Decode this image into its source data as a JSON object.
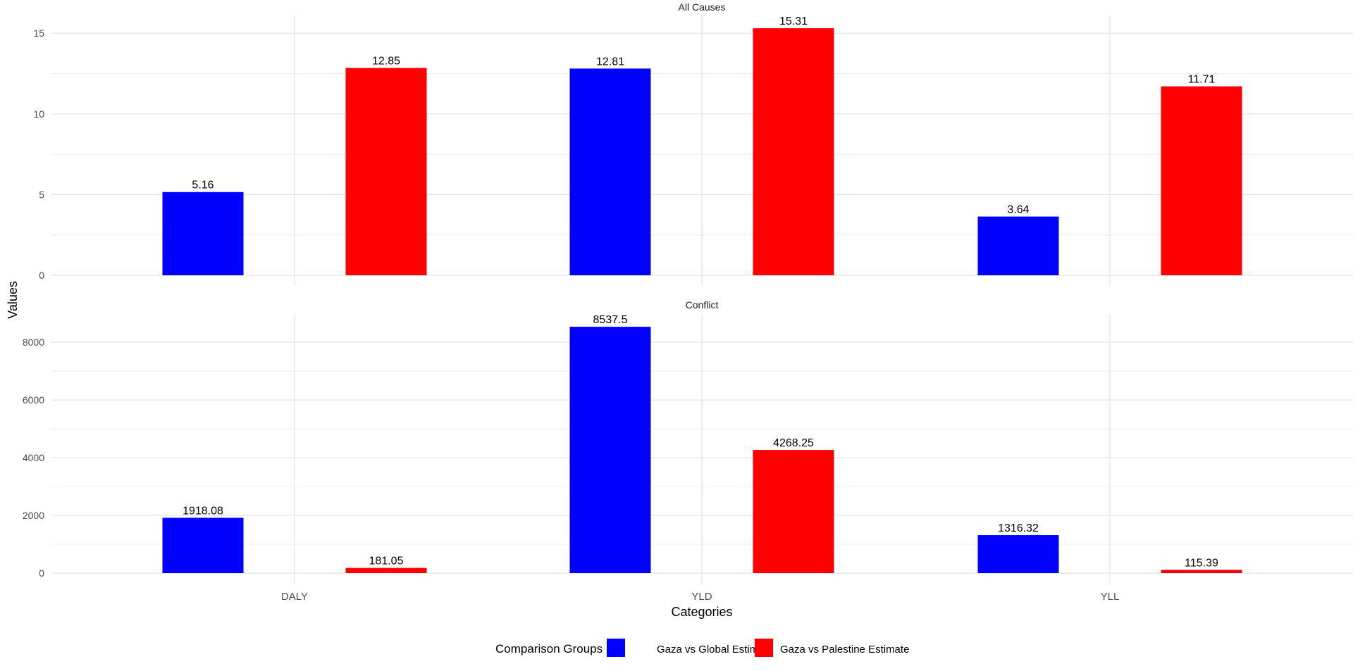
{
  "chart_data": {
    "type": "bar",
    "facets": [
      {
        "title": "All Causes",
        "categories": [
          "DALY",
          "YLD",
          "YLL"
        ],
        "ylim": [
          0,
          16.1
        ],
        "yticks": [
          0,
          5,
          10,
          15
        ],
        "series": [
          {
            "name": "Gaza vs Global Estimate",
            "color": "#0000ff",
            "values": [
              5.16,
              12.81,
              3.64
            ],
            "labels": [
              "5.16",
              "12.81",
              "3.64"
            ]
          },
          {
            "name": "Gaza vs Palestine Estimate",
            "color": "#ff0000",
            "values": [
              12.85,
              15.31,
              11.71
            ],
            "labels": [
              "12.85",
              "15.31",
              "11.71"
            ]
          }
        ]
      },
      {
        "title": "Conflict",
        "categories": [
          "DALY",
          "YLD",
          "YLL"
        ],
        "ylim": [
          0,
          8980
        ],
        "yticks": [
          0,
          2000,
          4000,
          6000,
          8000
        ],
        "series": [
          {
            "name": "Gaza vs Global Estimate",
            "color": "#0000ff",
            "values": [
              1918.08,
              8537.5,
              1316.32
            ],
            "labels": [
              "1918.08",
              "8537.5",
              "1316.32"
            ]
          },
          {
            "name": "Gaza vs Palestine Estimate",
            "color": "#ff0000",
            "values": [
              181.05,
              4268.25,
              115.39
            ],
            "labels": [
              "181.05",
              "4268.25",
              "115.39"
            ]
          }
        ]
      }
    ],
    "xlabel": "Categories",
    "ylabel": "Values",
    "x_tick_labels": [
      "DALY",
      "YLD",
      "YLL"
    ],
    "legend": {
      "title": "Comparison Groups",
      "position": "bottom",
      "entries": [
        {
          "label": "Gaza vs Global Estimate",
          "color": "#0000ff"
        },
        {
          "label": "Gaza vs Palestine Estimate",
          "color": "#ff0000"
        }
      ]
    },
    "grid": true
  }
}
